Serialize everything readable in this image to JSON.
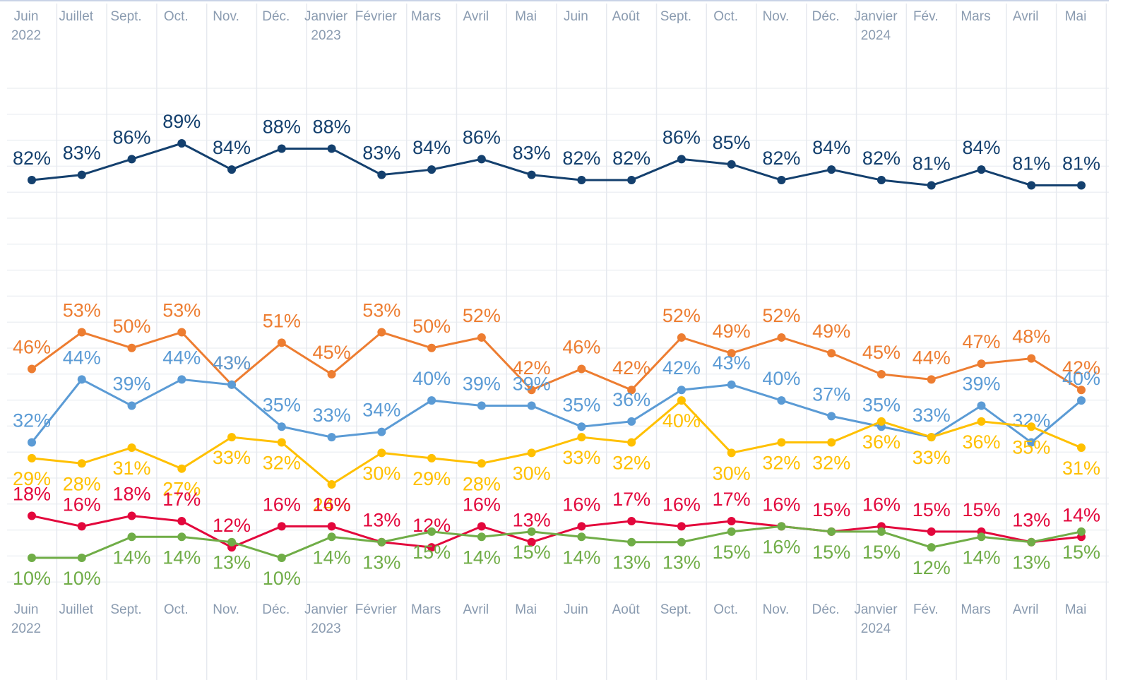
{
  "chart_data": {
    "type": "line",
    "categories": [
      "Juin\n2022",
      "Juillet",
      "Sept.",
      "Oct.",
      "Nov.",
      "Déc.",
      "Janvier\n2023",
      "Février",
      "Mars",
      "Avril",
      "Mai",
      "Juin",
      "Août",
      "Sept.",
      "Oct.",
      "Nov.",
      "Déc.",
      "Janvier\n2024",
      "Fév.",
      "Mars",
      "Avril",
      "Mai"
    ],
    "grid": true,
    "series": [
      {
        "color": "#14406e",
        "values": [
          82,
          83,
          86,
          89,
          84,
          88,
          88,
          83,
          84,
          86,
          83,
          82,
          82,
          86,
          85,
          82,
          84,
          82,
          81,
          84,
          81,
          81
        ],
        "value_labels": [
          "82%",
          "83%",
          "86%",
          "89%",
          "84%",
          "88%",
          "88%",
          "83%",
          "84%",
          "86%",
          "83%",
          "82%",
          "82%",
          "86%",
          "85%",
          "82%",
          "84%",
          "82%",
          "81%",
          "84%",
          "81%",
          "81%"
        ]
      },
      {
        "color": "#ed7d31",
        "values": [
          46,
          53,
          50,
          53,
          43,
          51,
          45,
          53,
          50,
          52,
          42,
          46,
          42,
          52,
          49,
          52,
          49,
          45,
          44,
          47,
          48,
          42
        ],
        "value_labels": [
          "46%",
          "53%",
          "50%",
          "53%",
          "43%",
          "51%",
          "45%",
          "53%",
          "50%",
          "52%",
          "42%",
          "46%",
          "42%",
          "52%",
          "49%",
          "52%",
          "49%",
          "45%",
          "44%",
          "47%",
          "48%",
          "42%"
        ]
      },
      {
        "color": "#5b9bd5",
        "values": [
          32,
          44,
          39,
          44,
          43,
          35,
          33,
          34,
          40,
          39,
          39,
          35,
          36,
          42,
          43,
          40,
          37,
          35,
          33,
          39,
          32,
          40
        ],
        "value_labels": [
          "32%",
          "44%",
          "39%",
          "44%",
          "43%",
          "35%",
          "33%",
          "34%",
          "40%",
          "39%",
          "39%",
          "35%",
          "36%",
          "42%",
          "43%",
          "40%",
          "37%",
          "35%",
          "33%",
          "39%",
          "32%",
          "40%"
        ]
      },
      {
        "color": "#ffc000",
        "values": [
          29,
          28,
          31,
          27,
          33,
          32,
          24,
          30,
          29,
          28,
          30,
          33,
          32,
          40,
          30,
          32,
          32,
          36,
          33,
          36,
          35,
          31
        ],
        "value_labels": [
          "29%",
          "28%",
          "31%",
          "27%",
          "33%",
          "32%",
          "24%",
          "30%",
          "29%",
          "28%",
          "30%",
          "33%",
          "32%",
          "40%",
          "30%",
          "32%",
          "32%",
          "36%",
          "33%",
          "36%",
          "35%",
          "31%"
        ]
      },
      {
        "color": "#e3073c",
        "values": [
          18,
          16,
          18,
          17,
          12,
          16,
          16,
          13,
          12,
          16,
          13,
          16,
          17,
          16,
          17,
          16,
          15,
          16,
          15,
          15,
          13,
          14
        ],
        "value_labels": [
          "18%",
          "16%",
          "18%",
          "17%",
          "12%",
          "16%",
          "16%",
          "13%",
          "12%",
          "16%",
          "13%",
          "16%",
          "17%",
          "16%",
          "17%",
          "16%",
          "15%",
          "16%",
          "15%",
          "15%",
          "13%",
          "14%"
        ]
      },
      {
        "color": "#70ad47",
        "values": [
          10,
          10,
          14,
          14,
          13,
          10,
          14,
          13,
          15,
          14,
          15,
          14,
          13,
          13,
          15,
          16,
          15,
          15,
          12,
          14,
          13,
          15
        ],
        "value_labels": [
          "10%",
          "10%",
          "14%",
          "14%",
          "13%",
          "10%",
          "14%",
          "13%",
          "15%",
          "14%",
          "15%",
          "14%",
          "13%",
          "13%",
          "15%",
          "16%",
          "15%",
          "15%",
          "12%",
          "14%",
          "13%",
          "15%"
        ]
      }
    ]
  }
}
